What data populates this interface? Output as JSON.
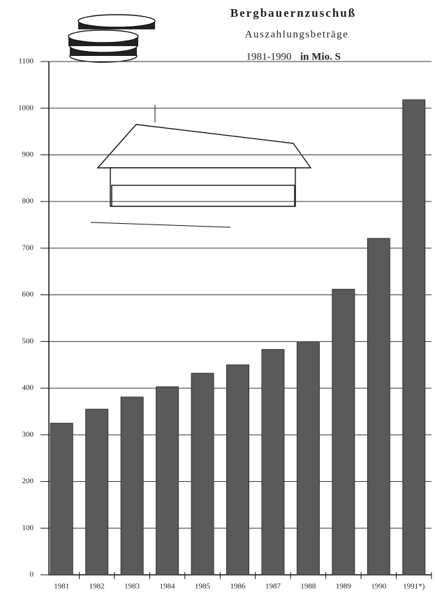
{
  "chart_data": {
    "type": "bar",
    "title": "Bergbauernzuschuß",
    "subtitle": "Auszahlungsbeträge",
    "period": "1981-1990",
    "unit": "in Mio. S",
    "categories": [
      "1981",
      "1982",
      "1983",
      "1984",
      "1985",
      "1986",
      "1987",
      "1988",
      "1989",
      "1990",
      "1991*)"
    ],
    "values": [
      325,
      355,
      381,
      403,
      432,
      450,
      483,
      498,
      612,
      721,
      1018
    ],
    "color": "#5a5a5a",
    "ylim": [
      0,
      1100
    ],
    "yticks": [
      0,
      100,
      200,
      300,
      400,
      500,
      600,
      700,
      800,
      900,
      1000,
      1100
    ],
    "grid": true
  }
}
